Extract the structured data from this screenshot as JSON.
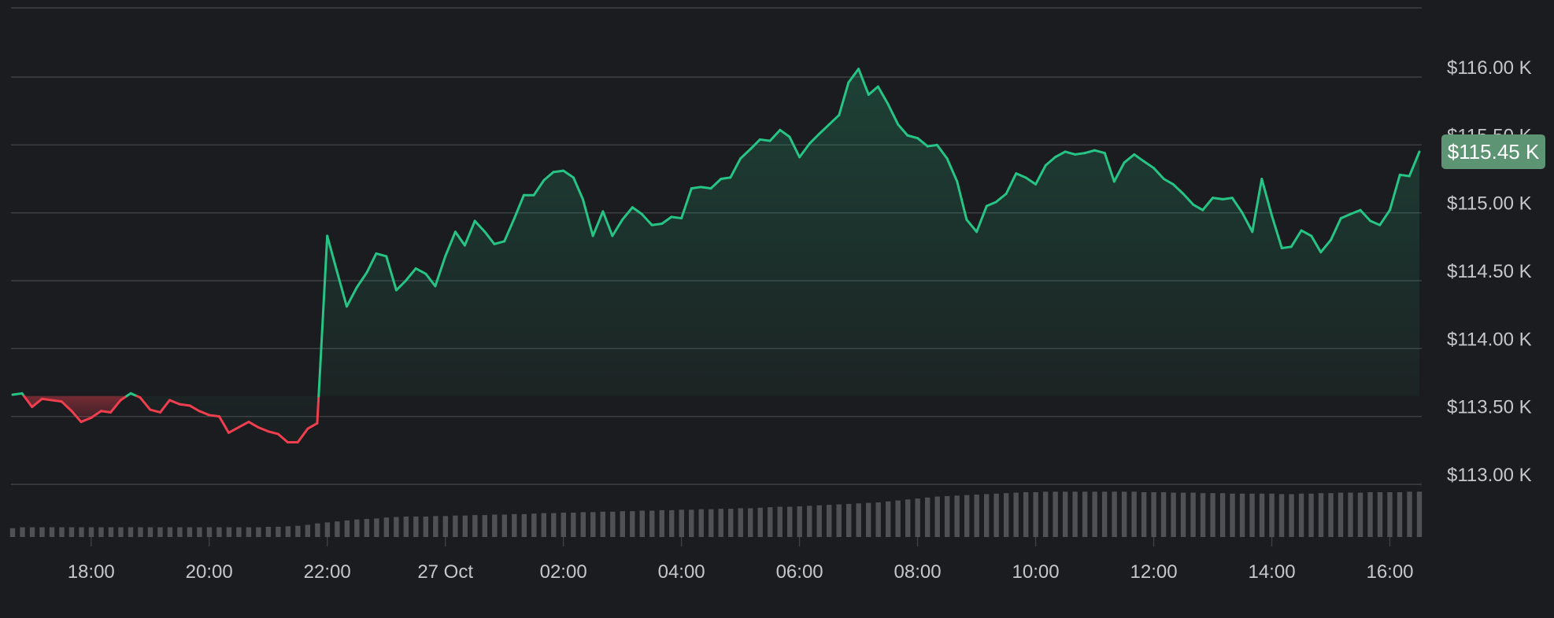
{
  "chart_data": {
    "type": "area",
    "title": "",
    "xlabel": "",
    "ylabel": "",
    "baseline_value": 113650,
    "current_price": 115450,
    "current_price_label": "$115.45 K",
    "y_ticks": [
      {
        "value": 113000,
        "label": "$113.00 K"
      },
      {
        "value": 113500,
        "label": "$113.50 K"
      },
      {
        "value": 114000,
        "label": "$114.00 K"
      },
      {
        "value": 114500,
        "label": "$114.50 K"
      },
      {
        "value": 115000,
        "label": "$115.00 K"
      },
      {
        "value": 115500,
        "label": "$115.50 K"
      },
      {
        "value": 116000,
        "label": "$116.00 K"
      }
    ],
    "y_range": [
      112900,
      116500
    ],
    "x_range": [
      "26 Oct 16:40",
      "27 Oct 16:30"
    ],
    "x_ticks": [
      {
        "t": 18.0,
        "label": "18:00"
      },
      {
        "t": 20.0,
        "label": "20:00"
      },
      {
        "t": 22.0,
        "label": "22:00"
      },
      {
        "t": 24.0,
        "label": "27 Oct"
      },
      {
        "t": 26.0,
        "label": "02:00"
      },
      {
        "t": 28.0,
        "label": "04:00"
      },
      {
        "t": 30.0,
        "label": "06:00"
      },
      {
        "t": 32.0,
        "label": "08:00"
      },
      {
        "t": 34.0,
        "label": "10:00"
      },
      {
        "t": 36.0,
        "label": "12:00"
      },
      {
        "t": 38.0,
        "label": "14:00"
      },
      {
        "t": 40.0,
        "label": "16:00"
      }
    ],
    "series": [
      {
        "points": [
          [
            16.67,
            113660
          ],
          [
            16.83,
            113670
          ],
          [
            17.0,
            113570
          ],
          [
            17.17,
            113630
          ],
          [
            17.33,
            113620
          ],
          [
            17.5,
            113610
          ],
          [
            17.67,
            113540
          ],
          [
            17.83,
            113460
          ],
          [
            18.0,
            113490
          ],
          [
            18.17,
            113540
          ],
          [
            18.33,
            113530
          ],
          [
            18.5,
            113620
          ],
          [
            18.67,
            113670
          ],
          [
            18.83,
            113640
          ],
          [
            19.0,
            113550
          ],
          [
            19.17,
            113530
          ],
          [
            19.33,
            113620
          ],
          [
            19.5,
            113590
          ],
          [
            19.67,
            113580
          ],
          [
            19.83,
            113540
          ],
          [
            20.0,
            113510
          ],
          [
            20.17,
            113500
          ],
          [
            20.33,
            113380
          ],
          [
            20.5,
            113420
          ],
          [
            20.67,
            113460
          ],
          [
            20.83,
            113420
          ],
          [
            21.0,
            113390
          ],
          [
            21.17,
            113370
          ],
          [
            21.33,
            113310
          ],
          [
            21.5,
            113310
          ],
          [
            21.67,
            113410
          ],
          [
            21.83,
            113450
          ],
          [
            22.0,
            114830
          ],
          [
            22.17,
            114560
          ],
          [
            22.33,
            114310
          ],
          [
            22.5,
            114450
          ],
          [
            22.67,
            114560
          ],
          [
            22.83,
            114700
          ],
          [
            23.0,
            114680
          ],
          [
            23.17,
            114430
          ],
          [
            23.33,
            114500
          ],
          [
            23.5,
            114590
          ],
          [
            23.67,
            114550
          ],
          [
            23.83,
            114460
          ],
          [
            24.0,
            114680
          ],
          [
            24.17,
            114860
          ],
          [
            24.33,
            114760
          ],
          [
            24.5,
            114940
          ],
          [
            24.67,
            114860
          ],
          [
            24.83,
            114770
          ],
          [
            25.0,
            114790
          ],
          [
            25.17,
            114960
          ],
          [
            25.33,
            115130
          ],
          [
            25.5,
            115130
          ],
          [
            25.67,
            115240
          ],
          [
            25.83,
            115300
          ],
          [
            26.0,
            115310
          ],
          [
            26.17,
            115260
          ],
          [
            26.33,
            115100
          ],
          [
            26.5,
            114830
          ],
          [
            26.67,
            115010
          ],
          [
            26.83,
            114830
          ],
          [
            27.0,
            114950
          ],
          [
            27.17,
            115040
          ],
          [
            27.33,
            114990
          ],
          [
            27.5,
            114910
          ],
          [
            27.67,
            114920
          ],
          [
            27.83,
            114970
          ],
          [
            28.0,
            114960
          ],
          [
            28.17,
            115180
          ],
          [
            28.33,
            115190
          ],
          [
            28.5,
            115180
          ],
          [
            28.67,
            115250
          ],
          [
            28.83,
            115260
          ],
          [
            29.0,
            115400
          ],
          [
            29.17,
            115470
          ],
          [
            29.33,
            115540
          ],
          [
            29.5,
            115530
          ],
          [
            29.67,
            115610
          ],
          [
            29.83,
            115560
          ],
          [
            30.0,
            115410
          ],
          [
            30.17,
            115510
          ],
          [
            30.33,
            115580
          ],
          [
            30.5,
            115650
          ],
          [
            30.67,
            115720
          ],
          [
            30.83,
            115960
          ],
          [
            31.0,
            116060
          ],
          [
            31.17,
            115870
          ],
          [
            31.33,
            115930
          ],
          [
            31.5,
            115800
          ],
          [
            31.67,
            115650
          ],
          [
            31.83,
            115570
          ],
          [
            32.0,
            115550
          ],
          [
            32.17,
            115490
          ],
          [
            32.33,
            115500
          ],
          [
            32.5,
            115400
          ],
          [
            32.67,
            115230
          ],
          [
            32.83,
            114950
          ],
          [
            33.0,
            114860
          ],
          [
            33.17,
            115050
          ],
          [
            33.33,
            115080
          ],
          [
            33.5,
            115140
          ],
          [
            33.67,
            115290
          ],
          [
            33.83,
            115260
          ],
          [
            34.0,
            115210
          ],
          [
            34.17,
            115350
          ],
          [
            34.33,
            115410
          ],
          [
            34.5,
            115450
          ],
          [
            34.67,
            115430
          ],
          [
            34.83,
            115440
          ],
          [
            35.0,
            115460
          ],
          [
            35.17,
            115440
          ],
          [
            35.33,
            115230
          ],
          [
            35.5,
            115370
          ],
          [
            35.67,
            115430
          ],
          [
            35.83,
            115380
          ],
          [
            36.0,
            115330
          ],
          [
            36.17,
            115250
          ],
          [
            36.33,
            115210
          ],
          [
            36.5,
            115140
          ],
          [
            36.67,
            115060
          ],
          [
            36.83,
            115020
          ],
          [
            37.0,
            115110
          ],
          [
            37.17,
            115100
          ],
          [
            37.33,
            115110
          ],
          [
            37.5,
            115000
          ],
          [
            37.67,
            114860
          ],
          [
            37.83,
            115250
          ],
          [
            38.0,
            114980
          ],
          [
            38.17,
            114740
          ],
          [
            38.33,
            114750
          ],
          [
            38.5,
            114870
          ],
          [
            38.67,
            114830
          ],
          [
            38.83,
            114710
          ],
          [
            39.0,
            114800
          ],
          [
            39.17,
            114960
          ],
          [
            39.33,
            114990
          ],
          [
            39.5,
            115020
          ],
          [
            39.67,
            114940
          ],
          [
            39.83,
            114910
          ],
          [
            40.0,
            115020
          ],
          [
            40.17,
            115280
          ],
          [
            40.33,
            115270
          ],
          [
            40.5,
            115450
          ]
        ]
      }
    ],
    "volume": [
      0.18,
      0.2,
      0.2,
      0.2,
      0.2,
      0.2,
      0.2,
      0.2,
      0.2,
      0.2,
      0.2,
      0.2,
      0.2,
      0.2,
      0.2,
      0.2,
      0.2,
      0.2,
      0.2,
      0.2,
      0.2,
      0.2,
      0.2,
      0.2,
      0.2,
      0.2,
      0.21,
      0.21,
      0.22,
      0.23,
      0.25,
      0.28,
      0.3,
      0.32,
      0.34,
      0.36,
      0.37,
      0.38,
      0.4,
      0.41,
      0.42,
      0.42,
      0.42,
      0.43,
      0.43,
      0.44,
      0.44,
      0.45,
      0.45,
      0.46,
      0.46,
      0.47,
      0.47,
      0.48,
      0.49,
      0.49,
      0.5,
      0.5,
      0.51,
      0.51,
      0.52,
      0.52,
      0.53,
      0.53,
      0.54,
      0.54,
      0.55,
      0.55,
      0.56,
      0.56,
      0.57,
      0.57,
      0.58,
      0.58,
      0.59,
      0.59,
      0.6,
      0.61,
      0.62,
      0.62,
      0.63,
      0.64,
      0.65,
      0.66,
      0.67,
      0.68,
      0.69,
      0.7,
      0.71,
      0.73,
      0.75,
      0.77,
      0.79,
      0.81,
      0.83,
      0.84,
      0.85,
      0.86,
      0.87,
      0.88,
      0.89,
      0.9,
      0.91,
      0.92,
      0.92,
      0.93,
      0.93,
      0.93,
      0.93,
      0.93,
      0.93,
      0.93,
      0.93,
      0.93,
      0.93,
      0.92,
      0.92,
      0.92,
      0.91,
      0.91,
      0.91,
      0.9,
      0.9,
      0.9,
      0.89,
      0.89,
      0.89,
      0.89,
      0.89,
      0.88,
      0.88,
      0.89,
      0.89,
      0.9,
      0.9,
      0.91,
      0.91,
      0.91,
      0.92,
      0.92,
      0.92,
      0.92,
      0.93,
      0.93
    ],
    "colors": {
      "up": "#26c485",
      "down": "#ef3f4f",
      "background": "#1b1c1f",
      "grid": "#3e4045",
      "tick_text": "#c6c7ca",
      "price_tag_bg": "#5d9474",
      "price_tag_text": "#ffffff",
      "volume_bar": "#4f5154"
    }
  }
}
